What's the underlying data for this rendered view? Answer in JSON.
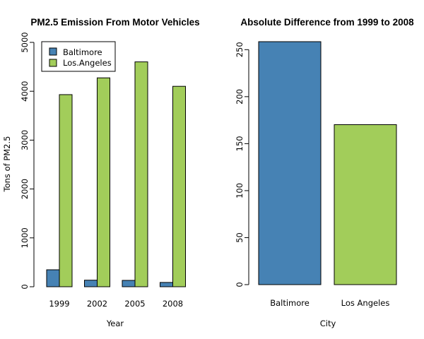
{
  "colors": {
    "baltimore": "#4682B4",
    "los_angeles": "#A2CD5A"
  },
  "chart_data": [
    {
      "type": "bar",
      "title": "PM2.5 Emission From Motor Vehicles",
      "xlabel": "Year",
      "ylabel": "Tons of PM2.5",
      "categories": [
        "1999",
        "2002",
        "2005",
        "2008"
      ],
      "series": [
        {
          "name": "Baltimore",
          "values": [
            347,
            134,
            130,
            88
          ]
        },
        {
          "name": "Los.Angeles",
          "values": [
            3931,
            4274,
            4601,
            4101
          ]
        }
      ],
      "ylim": [
        0,
        5000
      ],
      "yticks": [
        0,
        1000,
        2000,
        3000,
        4000,
        5000
      ],
      "legend": {
        "position": "top-left"
      }
    },
    {
      "type": "bar",
      "title": "Absolute Difference from 1999 to 2008",
      "xlabel": "City",
      "ylabel": "",
      "categories": [
        "Baltimore",
        "Los Angeles"
      ],
      "values": [
        258.5,
        170.2
      ],
      "ylim": [
        0,
        258.5
      ],
      "yticks": [
        0,
        50,
        100,
        150,
        200,
        250
      ]
    }
  ]
}
